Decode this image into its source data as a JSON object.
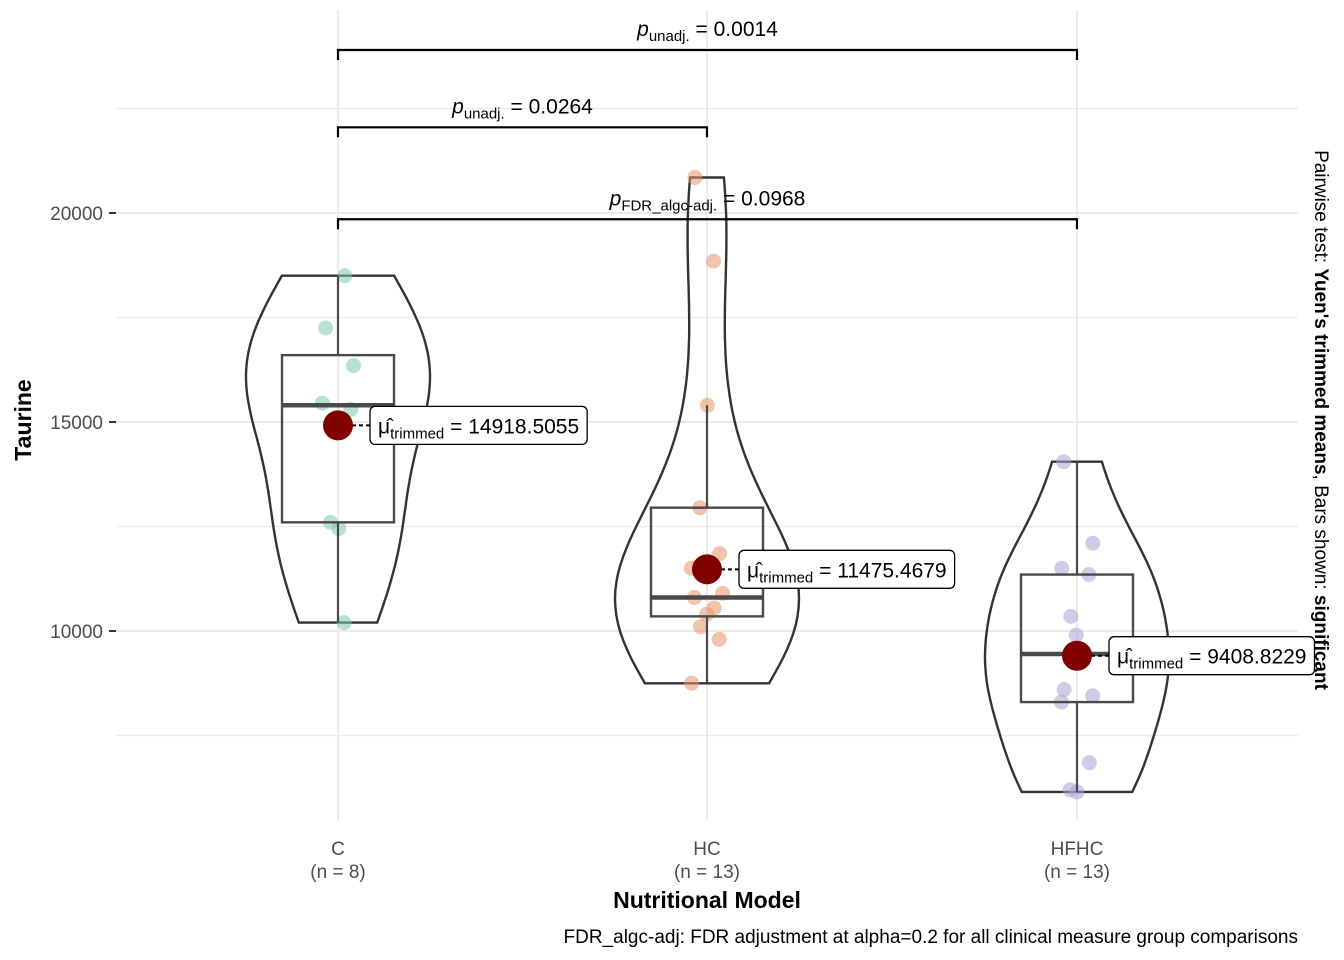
{
  "chart_data": {
    "type": "violin-box",
    "ylabel": "Taurine",
    "xlabel": "Nutritional Model",
    "ylim": [
      5000,
      24900
    ],
    "yticks": [
      10000,
      15000,
      20000
    ],
    "ytick_labels": [
      "10000",
      "15000",
      "20000"
    ],
    "grid": true,
    "groups": [
      {
        "name": "C",
        "n_label": "(n = 8)",
        "color": "#7fc8ae",
        "points": [
          18500,
          17250,
          16350,
          15450,
          15300,
          12600,
          12450,
          10200
        ],
        "box": {
          "q1": 12600,
          "median": 15400,
          "q3": 16600,
          "whisker_low": 10200,
          "whisker_high": 18500
        },
        "violin_range": [
          10200,
          18500
        ],
        "trimmed_mean": 14918.5055,
        "mean_label": "= 14918.5055"
      },
      {
        "name": "HC",
        "n_label": "(n = 13)",
        "color": "#e8916a",
        "points": [
          20850,
          18850,
          15400,
          12950,
          11850,
          11500,
          10900,
          10800,
          10550,
          10400,
          10100,
          9800,
          8750
        ],
        "box": {
          "q1": 10350,
          "median": 10800,
          "q3": 12950,
          "whisker_low": 8750,
          "whisker_high": 15400
        },
        "violin_range": [
          8750,
          20850
        ],
        "trimmed_mean": 11475.4679,
        "mean_label": "= 11475.4679"
      },
      {
        "name": "HFHC",
        "n_label": "(n = 13)",
        "color": "#a9a3d3",
        "points": [
          14050,
          12100,
          11500,
          11350,
          10350,
          9900,
          9500,
          8600,
          8450,
          8300,
          6850,
          6200,
          6150
        ],
        "box": {
          "q1": 8300,
          "median": 9450,
          "q3": 11350,
          "whisker_low": 6150,
          "whisker_high": 14050
        },
        "violin_range": [
          6150,
          14050
        ],
        "trimmed_mean": 9408.8229,
        "mean_label": "= 9408.8229"
      }
    ],
    "mean_symbol": "μ̂",
    "mean_subscript": "trimmed",
    "comparisons": [
      {
        "from": "C",
        "to": "HFHC",
        "y": 23900,
        "p_sub": "unadj.",
        "p_value": "= 0.0014"
      },
      {
        "from": "C",
        "to": "HC",
        "y": 22050,
        "p_sub": "unadj.",
        "p_value": "= 0.0264"
      },
      {
        "from": "C",
        "to": "HFHC",
        "y": 19850,
        "p_sub": "FDR_algc-adj.",
        "p_value": "= 0.0968"
      }
    ],
    "p_symbol": "p",
    "side_text": {
      "prefix": "Pairwise test: ",
      "test": "Yuen's trimmed means",
      "middle": ", Bars shown: ",
      "shown": "significant"
    },
    "caption": "FDR_algc-adj: FDR adjustment at alpha=0.2 for all clinical measure group comparisons",
    "colors": {
      "mean_point": "#800000",
      "grid": "#ebebeb",
      "outline": "#333333"
    }
  }
}
